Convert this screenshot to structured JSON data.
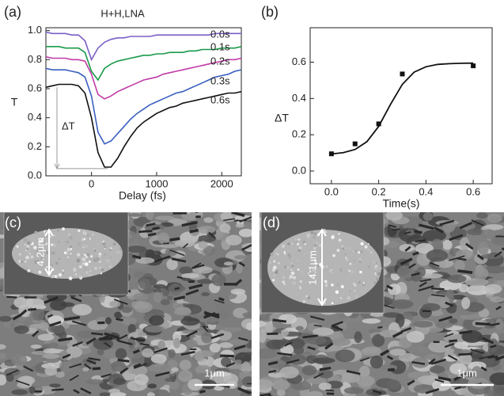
{
  "chart_data": [
    {
      "type": "line",
      "panel_label": "(a)",
      "title": "H+H,LNA",
      "x_label": "Delay (fs)",
      "y_label": "T",
      "annotations": [
        "ΔT"
      ],
      "x": [
        -700,
        -600,
        -500,
        -400,
        -300,
        -200,
        -100,
        0,
        100,
        200,
        300,
        400,
        500,
        600,
        700,
        800,
        900,
        1000,
        1100,
        1200,
        1300,
        1400,
        1500,
        1600,
        1700,
        1800,
        1900,
        2000,
        2100,
        2200,
        2300
      ],
      "series": [
        {
          "name": "0.0s",
          "color": "#7b5fc7",
          "values": [
            0.99,
            0.98,
            0.98,
            0.98,
            0.97,
            0.97,
            0.93,
            0.8,
            0.88,
            0.92,
            0.94,
            0.95,
            0.95,
            0.96,
            0.96,
            0.96,
            0.96,
            0.97,
            0.97,
            0.97,
            0.97,
            0.97,
            0.97,
            0.97,
            0.97,
            0.97,
            0.98,
            0.98,
            0.98,
            0.98,
            0.98
          ]
        },
        {
          "name": "0.1s",
          "color": "#1a9a4a",
          "values": [
            0.89,
            0.89,
            0.89,
            0.88,
            0.88,
            0.88,
            0.85,
            0.72,
            0.66,
            0.74,
            0.77,
            0.79,
            0.8,
            0.81,
            0.82,
            0.83,
            0.83,
            0.84,
            0.84,
            0.85,
            0.85,
            0.85,
            0.86,
            0.86,
            0.87,
            0.87,
            0.87,
            0.88,
            0.88,
            0.88,
            0.89
          ]
        },
        {
          "name": "0.2s",
          "color": "#c23aa8",
          "values": [
            0.82,
            0.81,
            0.81,
            0.81,
            0.8,
            0.8,
            0.79,
            0.7,
            0.56,
            0.53,
            0.55,
            0.58,
            0.6,
            0.62,
            0.64,
            0.66,
            0.67,
            0.68,
            0.7,
            0.71,
            0.72,
            0.73,
            0.74,
            0.75,
            0.76,
            0.77,
            0.78,
            0.79,
            0.8,
            0.8,
            0.81
          ]
        },
        {
          "name": "0.3s",
          "color": "#3a5fc0",
          "values": [
            0.74,
            0.73,
            0.73,
            0.73,
            0.72,
            0.71,
            0.68,
            0.55,
            0.3,
            0.22,
            0.24,
            0.29,
            0.34,
            0.39,
            0.43,
            0.46,
            0.49,
            0.51,
            0.53,
            0.55,
            0.57,
            0.58,
            0.6,
            0.62,
            0.64,
            0.66,
            0.68,
            0.69,
            0.7,
            0.72,
            0.73
          ]
        },
        {
          "name": "0.6s",
          "color": "#111111",
          "values": [
            0.61,
            0.62,
            0.63,
            0.63,
            0.63,
            0.62,
            0.57,
            0.4,
            0.16,
            0.06,
            0.06,
            0.12,
            0.2,
            0.27,
            0.33,
            0.37,
            0.4,
            0.43,
            0.45,
            0.47,
            0.48,
            0.5,
            0.51,
            0.52,
            0.53,
            0.54,
            0.55,
            0.56,
            0.57,
            0.57,
            0.58
          ]
        }
      ],
      "xlim": [
        -700,
        2300
      ],
      "ylim": [
        0,
        1.02
      ],
      "xticks": [
        0,
        1000,
        2000
      ],
      "yticks": [
        {
          "value": 0,
          "label": "0.0"
        },
        0.2,
        0.4,
        0.6,
        0.8,
        {
          "value": 1,
          "label": "1.0"
        }
      ]
    },
    {
      "type": "scatter",
      "panel_label": "(b)",
      "x_label": "Time(s)",
      "y_label": "ΔT",
      "points": {
        "color": "#111111",
        "x": [
          0,
          0.1,
          0.2,
          0.3,
          0.6
        ],
        "values": [
          0.095,
          0.15,
          0.26,
          0.535,
          0.58
        ]
      },
      "fit": {
        "color": "#111111",
        "x": [
          0,
          0.05,
          0.1,
          0.15,
          0.2,
          0.25,
          0.3,
          0.35,
          0.4,
          0.45,
          0.5,
          0.55,
          0.6
        ],
        "values": [
          0.094,
          0.101,
          0.119,
          0.162,
          0.246,
          0.368,
          0.478,
          0.545,
          0.575,
          0.588,
          0.592,
          0.594,
          0.595
        ]
      },
      "xlim": [
        -0.09,
        0.68
      ],
      "ylim": [
        -0.07,
        0.79
      ],
      "xticks": [
        {
          "value": 0,
          "label": "0.0"
        },
        0.2,
        0.4,
        0.6
      ],
      "yticks": [
        {
          "value": 0,
          "label": "0.0"
        },
        0.2,
        0.4,
        0.6
      ]
    }
  ],
  "images": [
    {
      "label": "(c)",
      "inset_label": "4.2μm",
      "scale_bar": "1μm"
    },
    {
      "label": "(d)",
      "inset_label": "14.1μm",
      "scale_bar": "1μm"
    }
  ]
}
